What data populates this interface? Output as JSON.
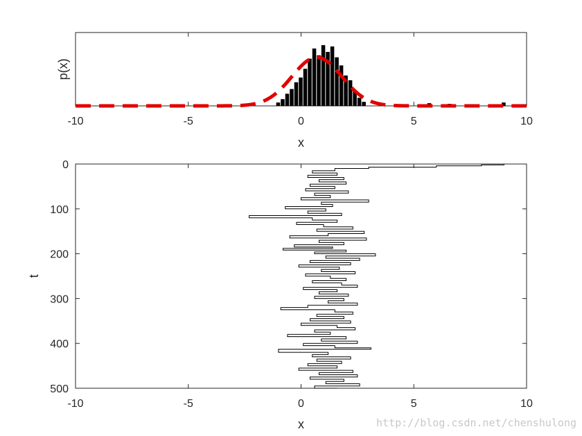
{
  "chart_data": [
    {
      "type": "histogram",
      "xlabel": "x",
      "ylabel": "p(x)",
      "xlim": [
        -10,
        10
      ],
      "xticks": [
        -10,
        -5,
        0,
        5,
        10
      ],
      "yticks_shown": false,
      "series": [
        {
          "kind": "bar",
          "color": "#000000",
          "bins": [
            [
              -1.0,
              0.05
            ],
            [
              -0.8,
              0.1
            ],
            [
              -0.6,
              0.18
            ],
            [
              -0.4,
              0.25
            ],
            [
              -0.2,
              0.35
            ],
            [
              0.0,
              0.42
            ],
            [
              0.2,
              0.55
            ],
            [
              0.4,
              0.7
            ],
            [
              0.6,
              0.85
            ],
            [
              0.8,
              0.75
            ],
            [
              1.0,
              0.9
            ],
            [
              1.2,
              0.8
            ],
            [
              1.4,
              0.88
            ],
            [
              1.6,
              0.72
            ],
            [
              1.8,
              0.6
            ],
            [
              2.0,
              0.45
            ],
            [
              2.2,
              0.38
            ],
            [
              2.4,
              0.22
            ],
            [
              2.6,
              0.12
            ],
            [
              2.8,
              0.06
            ],
            [
              5.7,
              0.04
            ],
            [
              6.6,
              0.03
            ],
            [
              9.0,
              0.05
            ]
          ]
        },
        {
          "kind": "line",
          "style": "dashed",
          "color": "#e00000",
          "mean": 0.7,
          "sd": 1.1,
          "peak": 0.72
        }
      ]
    },
    {
      "type": "line",
      "xlabel": "x",
      "ylabel": "t",
      "xlim": [
        -10,
        10
      ],
      "ylim": [
        0,
        500
      ],
      "y_reversed": true,
      "xticks": [
        -10,
        -5,
        0,
        5,
        10
      ],
      "yticks": [
        0,
        100,
        200,
        300,
        400,
        500
      ],
      "series": [
        {
          "color": "#000000",
          "points": [
            [
              9.0,
              0
            ],
            [
              8.0,
              2
            ],
            [
              6.0,
              4
            ],
            [
              3.0,
              7
            ],
            [
              1.5,
              10
            ],
            [
              0.5,
              15
            ],
            [
              1.6,
              20
            ],
            [
              0.3,
              25
            ],
            [
              1.9,
              30
            ],
            [
              0.8,
              35
            ],
            [
              2.0,
              40
            ],
            [
              0.4,
              45
            ],
            [
              1.5,
              50
            ],
            [
              0.2,
              55
            ],
            [
              2.1,
              60
            ],
            [
              0.6,
              65
            ],
            [
              1.3,
              70
            ],
            [
              0.0,
              75
            ],
            [
              3.0,
              80
            ],
            [
              0.9,
              85
            ],
            [
              1.4,
              90
            ],
            [
              -0.7,
              95
            ],
            [
              1.1,
              100
            ],
            [
              0.3,
              105
            ],
            [
              1.8,
              110
            ],
            [
              -2.3,
              115
            ],
            [
              0.5,
              120
            ],
            [
              1.6,
              125
            ],
            [
              -0.2,
              130
            ],
            [
              1.0,
              135
            ],
            [
              2.3,
              140
            ],
            [
              0.7,
              145
            ],
            [
              2.8,
              150
            ],
            [
              1.2,
              155
            ],
            [
              -0.5,
              160
            ],
            [
              2.9,
              165
            ],
            [
              0.8,
              170
            ],
            [
              1.9,
              175
            ],
            [
              -0.3,
              180
            ],
            [
              1.4,
              185
            ],
            [
              -0.8,
              188
            ],
            [
              2.0,
              192
            ],
            [
              0.6,
              196
            ],
            [
              3.3,
              200
            ],
            [
              1.1,
              205
            ],
            [
              2.6,
              210
            ],
            [
              0.4,
              215
            ],
            [
              2.2,
              220
            ],
            [
              -0.1,
              225
            ],
            [
              1.7,
              230
            ],
            [
              0.9,
              235
            ],
            [
              2.4,
              240
            ],
            [
              0.2,
              245
            ],
            [
              1.3,
              250
            ],
            [
              2.0,
              255
            ],
            [
              0.5,
              260
            ],
            [
              1.8,
              265
            ],
            [
              2.5,
              270
            ],
            [
              0.1,
              275
            ],
            [
              1.6,
              280
            ],
            [
              0.8,
              285
            ],
            [
              2.1,
              290
            ],
            [
              0.6,
              295
            ],
            [
              1.9,
              300
            ],
            [
              1.2,
              305
            ],
            [
              2.5,
              310
            ],
            [
              0.3,
              315
            ],
            [
              -0.9,
              320
            ],
            [
              1.5,
              325
            ],
            [
              2.3,
              330
            ],
            [
              0.7,
              335
            ],
            [
              1.9,
              340
            ],
            [
              0.4,
              345
            ],
            [
              2.2,
              350
            ],
            [
              0.0,
              355
            ],
            [
              1.6,
              360
            ],
            [
              2.4,
              365
            ],
            [
              0.6,
              370
            ],
            [
              1.3,
              375
            ],
            [
              -0.6,
              380
            ],
            [
              2.0,
              385
            ],
            [
              0.9,
              390
            ],
            [
              2.5,
              395
            ],
            [
              0.1,
              400
            ],
            [
              1.5,
              405
            ],
            [
              3.1,
              410
            ],
            [
              -1.0,
              413
            ],
            [
              1.2,
              420
            ],
            [
              0.5,
              425
            ],
            [
              2.2,
              430
            ],
            [
              0.7,
              435
            ],
            [
              1.8,
              440
            ],
            [
              0.3,
              445
            ],
            [
              1.6,
              450
            ],
            [
              -0.1,
              455
            ],
            [
              2.3,
              460
            ],
            [
              0.8,
              465
            ],
            [
              2.5,
              470
            ],
            [
              0.4,
              475
            ],
            [
              1.9,
              480
            ],
            [
              1.1,
              485
            ],
            [
              2.6,
              490
            ],
            [
              0.6,
              495
            ],
            [
              1.6,
              500
            ]
          ]
        }
      ]
    }
  ],
  "watermark": "http://blog.csdn.net/chenshulong"
}
